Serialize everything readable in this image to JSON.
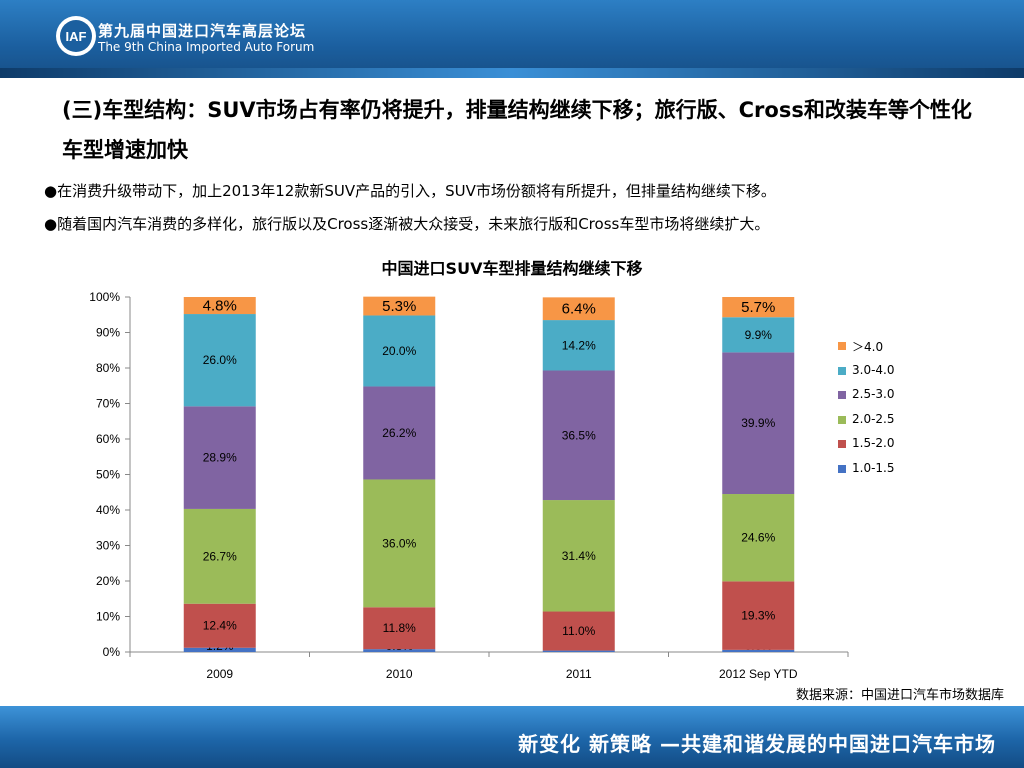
{
  "header": {
    "forum_cn": "第九届中国进口汽车高层论坛",
    "forum_en": "The 9th China Imported Auto Forum",
    "logo_text": "IAF"
  },
  "headline": "(三)车型结构：SUV市场占有率仍将提升，排量结构继续下移；旅行版、Cross和改装车等个性化车型增速加快",
  "bullets": [
    "●在消费升级带动下，加上2013年12款新SUV产品的引入，SUV市场份额将有所提升，但排量结构继续下移。",
    "●随着国内汽车消费的多样化，旅行版以及Cross逐渐被大众接受，未来旅行版和Cross车型市场将继续扩大。"
  ],
  "source": "数据来源：中国进口汽车市场数据库",
  "footer": {
    "slogan": "新变化 新策略 —共建和谐发展的中国进口汽车市场"
  },
  "chart_data": {
    "type": "bar",
    "stacked": true,
    "title": "中国进口SUV车型排量结构继续下移",
    "categories": [
      "2009",
      "2010",
      "2011",
      "2012 Sep YTD"
    ],
    "ylim": [
      0,
      100
    ],
    "ytick_labels": [
      "0%",
      "10%",
      "20%",
      "30%",
      "40%",
      "50%",
      "60%",
      "70%",
      "80%",
      "90%",
      "100%"
    ],
    "legend_position": "right",
    "series": [
      {
        "name": "1.0-1.5",
        "color": "#4472c4",
        "values": [
          1.2,
          0.8,
          0.4,
          0.6
        ],
        "labels": [
          "1.2%",
          "0.8%",
          "0.4%",
          "0.6%"
        ]
      },
      {
        "name": "1.5-2.0",
        "color": "#c0504d",
        "values": [
          12.4,
          11.8,
          11.0,
          19.3
        ],
        "labels": [
          "12.4%",
          "11.8%",
          "11.0%",
          "19.3%"
        ]
      },
      {
        "name": "2.0-2.5",
        "color": "#9bbb59",
        "values": [
          26.7,
          36.0,
          31.4,
          24.6
        ],
        "labels": [
          "26.7%",
          "36.0%",
          "31.4%",
          "24.6%"
        ]
      },
      {
        "name": "2.5-3.0",
        "color": "#8064a2",
        "values": [
          28.9,
          26.2,
          36.5,
          39.9
        ],
        "labels": [
          "28.9%",
          "26.2%",
          "36.5%",
          "39.9%"
        ]
      },
      {
        "name": "3.0-4.0",
        "color": "#4bacc6",
        "values": [
          26.0,
          20.0,
          14.2,
          9.9
        ],
        "labels": [
          "26.0%",
          "20.0%",
          "14.2%",
          "9.9%"
        ]
      },
      {
        "name": "＞4.0",
        "color": "#f79646",
        "values": [
          4.8,
          5.3,
          6.4,
          5.7
        ],
        "labels": [
          "4.8%",
          "5.3%",
          "6.4%",
          "5.7%"
        ]
      }
    ]
  }
}
